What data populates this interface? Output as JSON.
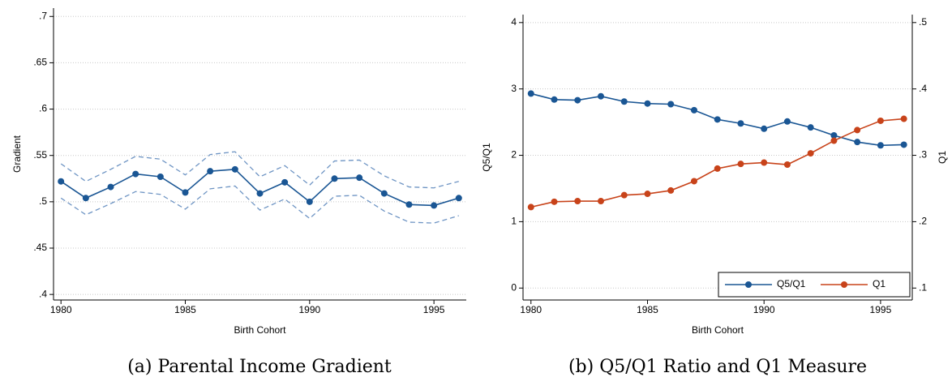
{
  "chart_data": [
    {
      "type": "line",
      "caption": "(a) Parental Income Gradient",
      "xlabel": "Birth Cohort",
      "ylabel": "Gradient",
      "x": [
        1980,
        1981,
        1982,
        1983,
        1984,
        1985,
        1986,
        1987,
        1988,
        1989,
        1990,
        1991,
        1992,
        1993,
        1994,
        1995,
        1996
      ],
      "xlim": [
        1979.7,
        1996.3
      ],
      "xticks": [
        1980,
        1985,
        1990,
        1995
      ],
      "ylim": [
        0.394,
        0.709
      ],
      "yticks": [
        {
          "value": 0.4,
          "label": ".4"
        },
        {
          "value": 0.45,
          "label": ".45"
        },
        {
          "value": 0.5,
          "label": ".5"
        },
        {
          "value": 0.55,
          "label": ".55"
        },
        {
          "value": 0.6,
          "label": ".6"
        },
        {
          "value": 0.65,
          "label": ".65"
        },
        {
          "value": 0.7,
          "label": ".7"
        }
      ],
      "grid": true,
      "series": [
        {
          "color": "#1a5694",
          "markers": true,
          "dashed": false,
          "values": [
            0.522,
            0.504,
            0.516,
            0.53,
            0.527,
            0.51,
            0.533,
            0.535,
            0.509,
            0.521,
            0.5,
            0.525,
            0.526,
            0.509,
            0.497,
            0.496,
            0.504
          ]
        },
        {
          "color": "#6f95c4",
          "markers": false,
          "dashed": true,
          "values": [
            0.541,
            0.522,
            0.535,
            0.549,
            0.546,
            0.529,
            0.551,
            0.554,
            0.527,
            0.539,
            0.518,
            0.544,
            0.545,
            0.528,
            0.516,
            0.515,
            0.522
          ]
        },
        {
          "color": "#6f95c4",
          "markers": false,
          "dashed": true,
          "values": [
            0.504,
            0.486,
            0.498,
            0.511,
            0.508,
            0.492,
            0.514,
            0.517,
            0.491,
            0.503,
            0.482,
            0.506,
            0.507,
            0.49,
            0.478,
            0.477,
            0.485
          ]
        }
      ]
    },
    {
      "type": "line",
      "caption": "(b) Q5/Q1 Ratio and Q1 Measure",
      "xlabel": "Birth Cohort",
      "ylabel": "Q5/Q1",
      "y2label": "Q1",
      "x": [
        1980,
        1981,
        1982,
        1983,
        1984,
        1985,
        1986,
        1987,
        1988,
        1989,
        1990,
        1991,
        1992,
        1993,
        1994,
        1995,
        1996
      ],
      "xlim": [
        1979.66,
        1996.36
      ],
      "xticks": [
        1980,
        1985,
        1990,
        1995
      ],
      "ylim": [
        -0.18,
        4.12
      ],
      "yticks": [
        0,
        1,
        2,
        3,
        4
      ],
      "y2lim": [
        0.082,
        0.512
      ],
      "y2ticks": [
        {
          "value": 0.1,
          "label": ".1"
        },
        {
          "value": 0.2,
          "label": ".2"
        },
        {
          "value": 0.3,
          "label": ".3"
        },
        {
          "value": 0.4,
          "label": ".4"
        },
        {
          "value": 0.5,
          "label": ".5"
        }
      ],
      "grid": true,
      "legend": "lower right",
      "series": [
        {
          "name": "Q5/Q1",
          "color": "#1a5694",
          "markers": true,
          "dashed": false,
          "values": [
            2.93,
            2.84,
            2.83,
            2.89,
            2.81,
            2.78,
            2.77,
            2.68,
            2.54,
            2.48,
            2.4,
            2.51,
            2.42,
            2.3,
            2.2,
            2.15,
            2.16
          ]
        },
        {
          "name": "Q1",
          "color": "#c8431a",
          "markers": true,
          "dashed": false,
          "axis": "y2",
          "values": [
            0.222,
            0.23,
            0.231,
            0.231,
            0.24,
            0.242,
            0.247,
            0.261,
            0.28,
            0.287,
            0.289,
            0.286,
            0.303,
            0.322,
            0.338,
            0.352,
            0.355
          ]
        }
      ]
    }
  ]
}
